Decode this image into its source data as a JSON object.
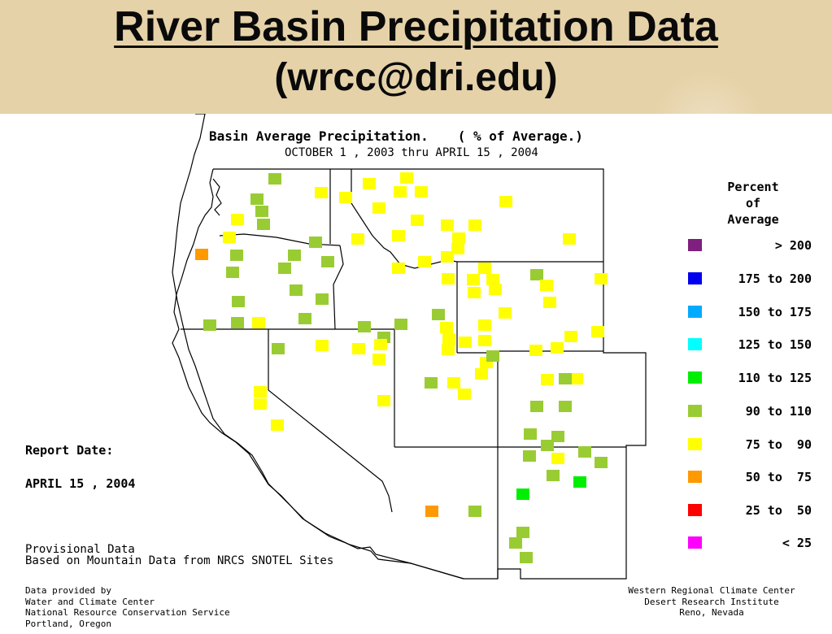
{
  "title": {
    "line1": "River Basin Precipitation Data",
    "line2": "(wrcc@dri.edu)"
  },
  "map": {
    "heading_left": "Basin Average Precipitation.",
    "heading_right": "( % of Average.)",
    "period": "OCTOBER 1 , 2003 thru APRIL 15 , 2004",
    "report_label": "Report Date:",
    "report_date": "APRIL 15 , 2004",
    "provisional": "Provisional Data",
    "source_note": "Based on Mountain Data from NRCS SNOTEL Sites",
    "credits_left": [
      "Data provided by",
      "Water and Climate Center",
      "National Resource Conservation Service",
      "Portland, Oregon"
    ],
    "credits_right": [
      "Western Regional Climate Center",
      "Desert Research Institute",
      "Reno, Nevada"
    ]
  },
  "legend": {
    "title_lines": [
      "Percent",
      "of",
      "Average"
    ],
    "items": [
      {
        "label": "> 200",
        "color": "#7f1f7f"
      },
      {
        "label": "175 to 200",
        "color": "#0000ee"
      },
      {
        "label": "150 to 175",
        "color": "#00aaff"
      },
      {
        "label": "125 to 150",
        "color": "#00ffff"
      },
      {
        "label": "110 to 125",
        "color": "#00ee00"
      },
      {
        "label": "90 to 110",
        "color": "#99cc33"
      },
      {
        "label": "75 to  90",
        "color": "#ffff00"
      },
      {
        "label": "50 to  75",
        "color": "#ff9900"
      },
      {
        "label": "25 to  50",
        "color": "#ff0000"
      },
      {
        "label": "< 25",
        "color": "#ff00ff"
      }
    ]
  }
}
